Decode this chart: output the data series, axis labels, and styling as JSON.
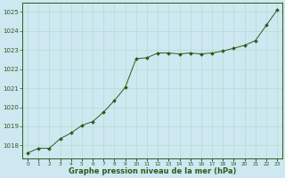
{
  "x": [
    0,
    1,
    2,
    3,
    4,
    5,
    6,
    7,
    8,
    9,
    10,
    11,
    12,
    13,
    14,
    15,
    16,
    17,
    18,
    19,
    20,
    21,
    22,
    23
  ],
  "y": [
    1017.6,
    1017.85,
    1017.85,
    1018.35,
    1018.65,
    1019.05,
    1019.25,
    1019.75,
    1020.35,
    1021.05,
    1022.55,
    1022.6,
    1022.85,
    1022.85,
    1022.8,
    1022.85,
    1022.8,
    1022.85,
    1022.95,
    1023.1,
    1023.25,
    1023.5,
    1024.3,
    1025.1
  ],
  "line_color": "#2d5a1b",
  "marker_color": "#2d5a1b",
  "bg_color": "#cde8f0",
  "grid_color": "#b0d8c8",
  "xlabel": "Graphe pression niveau de la mer (hPa)",
  "xlabel_color": "#2d5a1b",
  "ylabel_ticks": [
    1018,
    1019,
    1020,
    1021,
    1022,
    1023,
    1024,
    1025
  ],
  "xtick_labels": [
    "0",
    "1",
    "2",
    "3",
    "4",
    "5",
    "6",
    "7",
    "8",
    "9",
    "10",
    "11",
    "12",
    "13",
    "14",
    "15",
    "16",
    "17",
    "18",
    "19",
    "20",
    "21",
    "22",
    "23"
  ],
  "ylim": [
    1017.3,
    1025.5
  ],
  "xlim": [
    -0.5,
    23.5
  ],
  "figsize": [
    3.2,
    2.0
  ],
  "dpi": 100
}
